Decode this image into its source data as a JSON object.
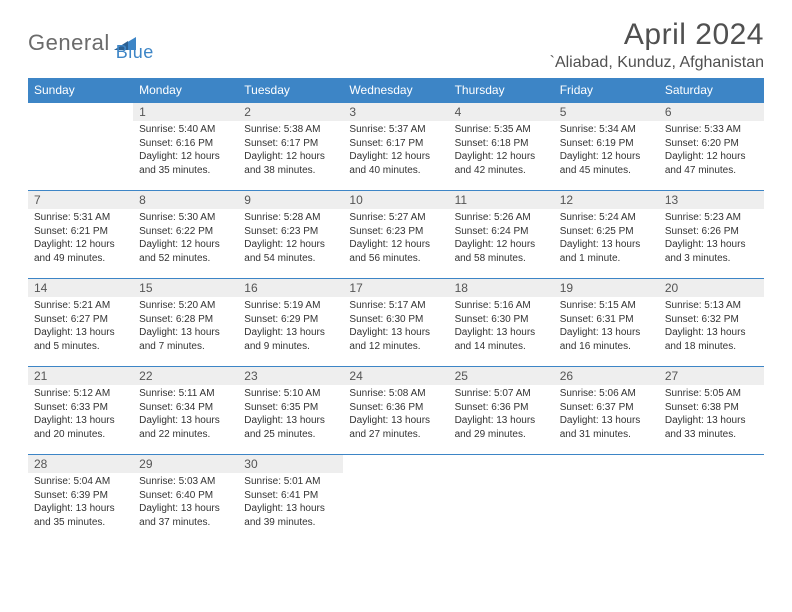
{
  "logo": {
    "word1": "General",
    "word2": "Blue",
    "color1": "#6b6b6b",
    "color2": "#3d85c6"
  },
  "title": "April 2024",
  "location": "`Aliabad, Kunduz, Afghanistan",
  "theme": {
    "header_bg": "#3d85c6",
    "header_fg": "#ffffff",
    "rule": "#3d85c6",
    "daynum_bg": "#eeeeee"
  },
  "weekdays": [
    "Sunday",
    "Monday",
    "Tuesday",
    "Wednesday",
    "Thursday",
    "Friday",
    "Saturday"
  ],
  "weeks": [
    [
      null,
      {
        "n": "1",
        "sr": "5:40 AM",
        "ss": "6:16 PM",
        "dl": "12 hours and 35 minutes."
      },
      {
        "n": "2",
        "sr": "5:38 AM",
        "ss": "6:17 PM",
        "dl": "12 hours and 38 minutes."
      },
      {
        "n": "3",
        "sr": "5:37 AM",
        "ss": "6:17 PM",
        "dl": "12 hours and 40 minutes."
      },
      {
        "n": "4",
        "sr": "5:35 AM",
        "ss": "6:18 PM",
        "dl": "12 hours and 42 minutes."
      },
      {
        "n": "5",
        "sr": "5:34 AM",
        "ss": "6:19 PM",
        "dl": "12 hours and 45 minutes."
      },
      {
        "n": "6",
        "sr": "5:33 AM",
        "ss": "6:20 PM",
        "dl": "12 hours and 47 minutes."
      }
    ],
    [
      {
        "n": "7",
        "sr": "5:31 AM",
        "ss": "6:21 PM",
        "dl": "12 hours and 49 minutes."
      },
      {
        "n": "8",
        "sr": "5:30 AM",
        "ss": "6:22 PM",
        "dl": "12 hours and 52 minutes."
      },
      {
        "n": "9",
        "sr": "5:28 AM",
        "ss": "6:23 PM",
        "dl": "12 hours and 54 minutes."
      },
      {
        "n": "10",
        "sr": "5:27 AM",
        "ss": "6:23 PM",
        "dl": "12 hours and 56 minutes."
      },
      {
        "n": "11",
        "sr": "5:26 AM",
        "ss": "6:24 PM",
        "dl": "12 hours and 58 minutes."
      },
      {
        "n": "12",
        "sr": "5:24 AM",
        "ss": "6:25 PM",
        "dl": "13 hours and 1 minute."
      },
      {
        "n": "13",
        "sr": "5:23 AM",
        "ss": "6:26 PM",
        "dl": "13 hours and 3 minutes."
      }
    ],
    [
      {
        "n": "14",
        "sr": "5:21 AM",
        "ss": "6:27 PM",
        "dl": "13 hours and 5 minutes."
      },
      {
        "n": "15",
        "sr": "5:20 AM",
        "ss": "6:28 PM",
        "dl": "13 hours and 7 minutes."
      },
      {
        "n": "16",
        "sr": "5:19 AM",
        "ss": "6:29 PM",
        "dl": "13 hours and 9 minutes."
      },
      {
        "n": "17",
        "sr": "5:17 AM",
        "ss": "6:30 PM",
        "dl": "13 hours and 12 minutes."
      },
      {
        "n": "18",
        "sr": "5:16 AM",
        "ss": "6:30 PM",
        "dl": "13 hours and 14 minutes."
      },
      {
        "n": "19",
        "sr": "5:15 AM",
        "ss": "6:31 PM",
        "dl": "13 hours and 16 minutes."
      },
      {
        "n": "20",
        "sr": "5:13 AM",
        "ss": "6:32 PM",
        "dl": "13 hours and 18 minutes."
      }
    ],
    [
      {
        "n": "21",
        "sr": "5:12 AM",
        "ss": "6:33 PM",
        "dl": "13 hours and 20 minutes."
      },
      {
        "n": "22",
        "sr": "5:11 AM",
        "ss": "6:34 PM",
        "dl": "13 hours and 22 minutes."
      },
      {
        "n": "23",
        "sr": "5:10 AM",
        "ss": "6:35 PM",
        "dl": "13 hours and 25 minutes."
      },
      {
        "n": "24",
        "sr": "5:08 AM",
        "ss": "6:36 PM",
        "dl": "13 hours and 27 minutes."
      },
      {
        "n": "25",
        "sr": "5:07 AM",
        "ss": "6:36 PM",
        "dl": "13 hours and 29 minutes."
      },
      {
        "n": "26",
        "sr": "5:06 AM",
        "ss": "6:37 PM",
        "dl": "13 hours and 31 minutes."
      },
      {
        "n": "27",
        "sr": "5:05 AM",
        "ss": "6:38 PM",
        "dl": "13 hours and 33 minutes."
      }
    ],
    [
      {
        "n": "28",
        "sr": "5:04 AM",
        "ss": "6:39 PM",
        "dl": "13 hours and 35 minutes."
      },
      {
        "n": "29",
        "sr": "5:03 AM",
        "ss": "6:40 PM",
        "dl": "13 hours and 37 minutes."
      },
      {
        "n": "30",
        "sr": "5:01 AM",
        "ss": "6:41 PM",
        "dl": "13 hours and 39 minutes."
      },
      null,
      null,
      null,
      null
    ]
  ],
  "labels": {
    "sunrise": "Sunrise:",
    "sunset": "Sunset:",
    "daylight": "Daylight:"
  }
}
